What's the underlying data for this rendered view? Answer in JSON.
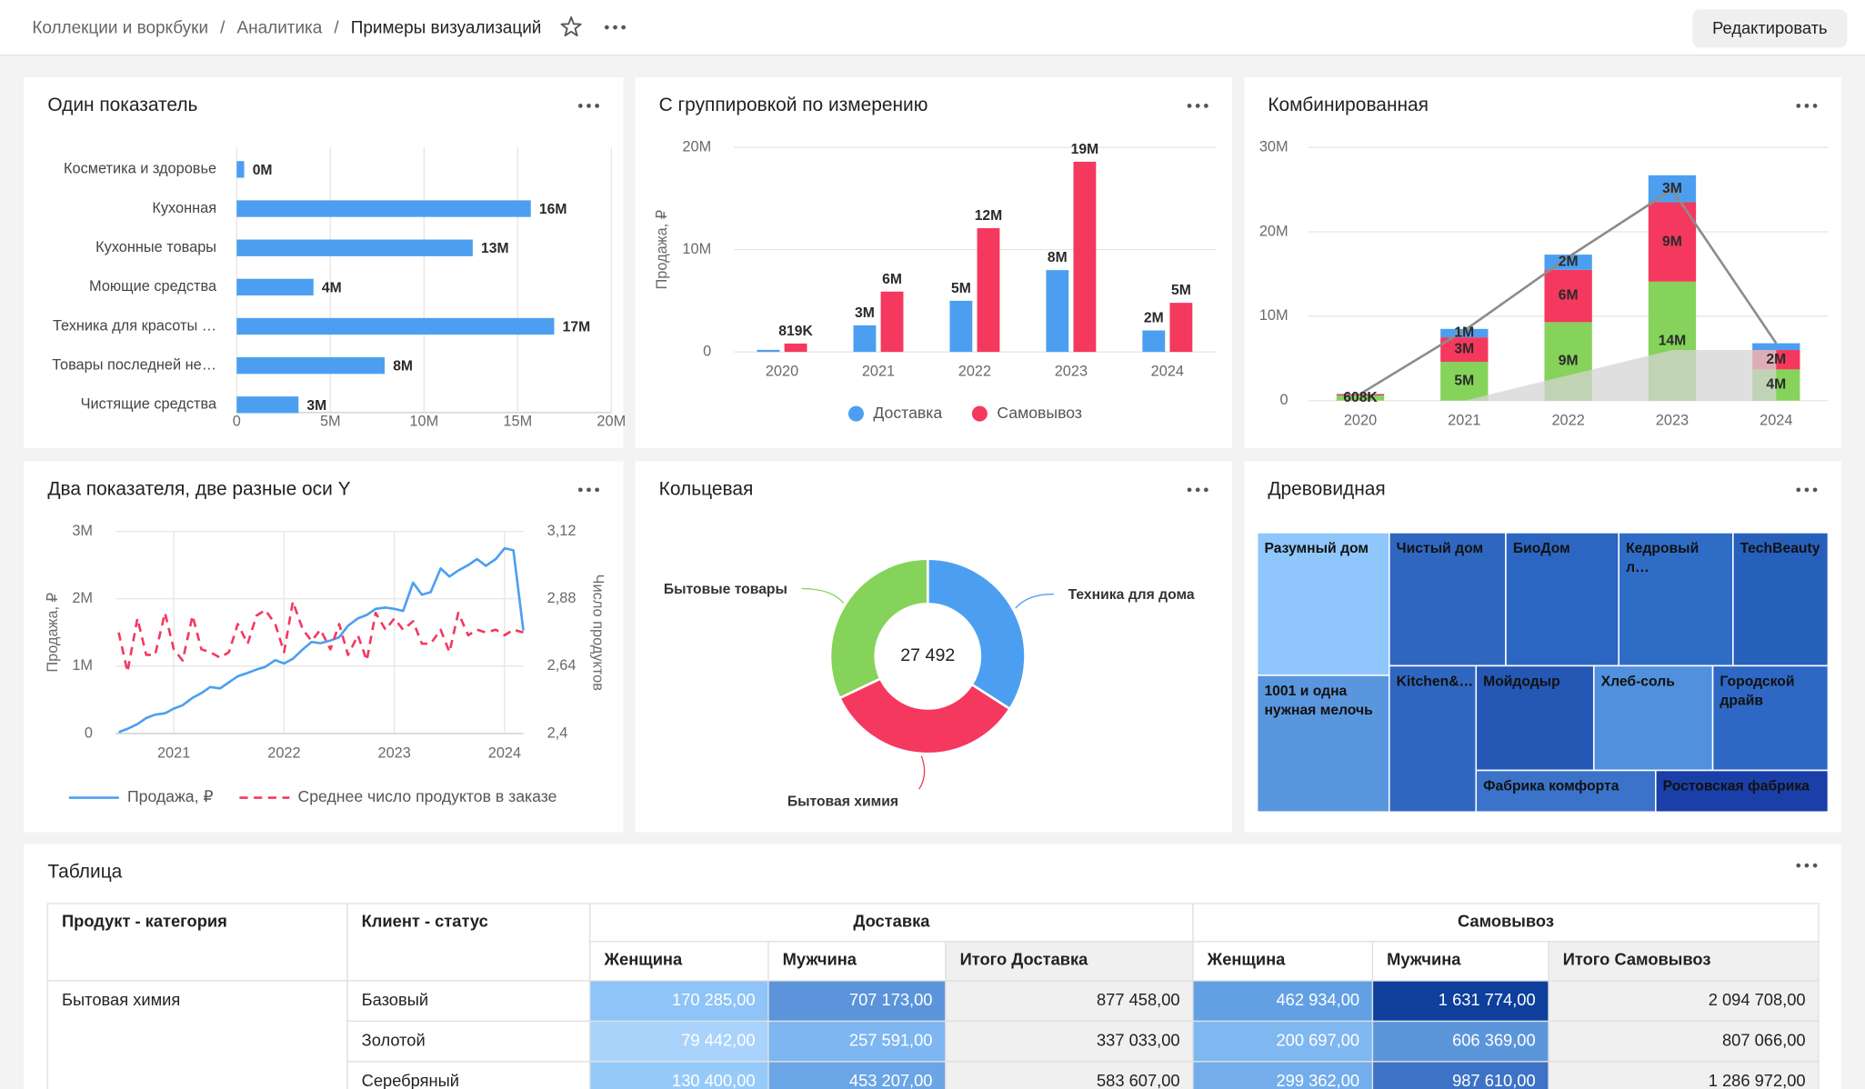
{
  "header": {
    "breadcrumbs": [
      "Коллекции и воркбуки",
      "Аналитика",
      "Примеры визуализаций"
    ],
    "separator": "/",
    "edit_button": "Редактировать"
  },
  "chart_data": [
    {
      "type": "bar",
      "orientation": "horizontal",
      "title": "Один показатель",
      "categories": [
        "Косметика и здоровье",
        "Кухонная",
        "Кухонные товары",
        "Моющие средства",
        "Техника для красоты …",
        "Товары последней не…",
        "Чистящие средства"
      ],
      "values": [
        400000,
        15700000,
        12600000,
        4100000,
        16950000,
        7900000,
        3300000
      ],
      "value_labels": [
        "0M",
        "16M",
        "13M",
        "4M",
        "17M",
        "8M",
        "3M"
      ],
      "color": "#4c9ff0",
      "xlim": [
        0,
        20000000
      ],
      "xticks": [
        0,
        {
          "value": 5000000,
          "label": "5M"
        },
        {
          "value": 10000000,
          "label": "10M"
        },
        {
          "value": 15000000,
          "label": "15M"
        },
        {
          "value": 20000000,
          "label": "20M"
        }
      ],
      "grid": true
    },
    {
      "type": "bar",
      "title": "С группировкой по измерению",
      "y_label": "Продажа, ₽",
      "categories": [
        "2020",
        "2021",
        "2022",
        "2023",
        "2024"
      ],
      "series": [
        {
          "name": "Доставка",
          "color": "#4c9ff0",
          "values": [
            200000,
            2600000,
            5000000,
            8000000,
            2100000
          ],
          "value_labels": [
            null,
            "3M",
            "5M",
            "8M",
            "2M"
          ]
        },
        {
          "name": "Самовывоз",
          "color": "#f5385e",
          "values": [
            819000,
            5900000,
            12100000,
            18600000,
            4800000
          ],
          "value_labels": [
            "819K",
            "6M",
            "12M",
            "19M",
            "5M"
          ]
        }
      ],
      "ylim": [
        0,
        20000000
      ],
      "yticks": [
        0,
        {
          "value": 10000000,
          "label": "10M"
        },
        {
          "value": 20000000,
          "label": "20M"
        }
      ],
      "grid": true,
      "legend": "bottom"
    },
    {
      "type": "combo",
      "title": "Комбинированная",
      "categories": [
        "2020",
        "2021",
        "2022",
        "2023",
        "2024"
      ],
      "series": [
        {
          "kind": "stacked_bar",
          "color": "#85d35a",
          "values": [
            608000,
            4600000,
            9300000,
            14100000,
            3700000
          ],
          "value_labels": [
            "608K",
            "5M",
            "9M",
            "14M",
            "4M"
          ]
        },
        {
          "kind": "stacked_bar",
          "color": "#f5385e",
          "values": [
            150000,
            2900000,
            6200000,
            9400000,
            2300000
          ],
          "value_labels": [
            null,
            "3M",
            "6M",
            "9M",
            "2M"
          ]
        },
        {
          "kind": "stacked_bar",
          "color": "#4c9ff0",
          "values": [
            50000,
            1000000,
            1800000,
            3200000,
            800000
          ],
          "value_labels": [
            null,
            "1M",
            "2M",
            "3M",
            null
          ]
        },
        {
          "kind": "area",
          "color": "#d4d4d4",
          "values": [
            0,
            0,
            3000000,
            6000000,
            6000000
          ]
        },
        {
          "kind": "line",
          "color": "#8c8c8c",
          "values": [
            800000,
            8300000,
            17000000,
            25000000,
            6800000
          ]
        }
      ],
      "ylim": [
        0,
        30000000
      ],
      "yticks": [
        0,
        {
          "value": 10000000,
          "label": "10M"
        },
        {
          "value": 20000000,
          "label": "20M"
        },
        {
          "value": 30000000,
          "label": "30M"
        }
      ],
      "grid": true
    },
    {
      "type": "line",
      "title": "Два показателя, две разные оси Y",
      "y_label": "Продажа, ₽",
      "y2_label": "Число продуктов",
      "x": [
        2020.5,
        2020.58,
        2020.67,
        2020.75,
        2020.83,
        2020.92,
        2021,
        2021.08,
        2021.17,
        2021.25,
        2021.33,
        2021.42,
        2021.5,
        2021.58,
        2021.67,
        2021.75,
        2021.83,
        2021.92,
        2022,
        2022.08,
        2022.17,
        2022.25,
        2022.33,
        2022.42,
        2022.5,
        2022.58,
        2022.67,
        2022.75,
        2022.83,
        2022.92,
        2023,
        2023.08,
        2023.17,
        2023.25,
        2023.33,
        2023.42,
        2023.5,
        2023.58,
        2023.67,
        2023.75,
        2023.83,
        2023.92,
        2024,
        2024.08,
        2024.17
      ],
      "series": [
        {
          "name": "Продажа, ₽",
          "color": "#4c9ff0",
          "values": [
            20000,
            70000,
            140000,
            230000,
            280000,
            300000,
            370000,
            420000,
            530000,
            600000,
            690000,
            670000,
            760000,
            850000,
            900000,
            950000,
            990000,
            1090000,
            1040000,
            1110000,
            1250000,
            1360000,
            1340000,
            1380000,
            1430000,
            1600000,
            1710000,
            1760000,
            1850000,
            1870000,
            1850000,
            1820000,
            2240000,
            2060000,
            2100000,
            2450000,
            2330000,
            2420000,
            2500000,
            2590000,
            2490000,
            2590000,
            2750000,
            2720000,
            1530000
          ]
        },
        {
          "name": "Среднее число продуктов в заказе",
          "color": "#f5385e",
          "axis": "y2",
          "dashed": true,
          "values": [
            2.76,
            2.62,
            2.81,
            2.68,
            2.68,
            2.83,
            2.7,
            2.66,
            2.82,
            2.7,
            2.69,
            2.67,
            2.69,
            2.79,
            2.72,
            2.82,
            2.84,
            2.79,
            2.69,
            2.87,
            2.77,
            2.73,
            2.77,
            2.7,
            2.79,
            2.68,
            2.75,
            2.66,
            2.83,
            2.77,
            2.81,
            2.77,
            2.8,
            2.72,
            2.72,
            2.77,
            2.69,
            2.83,
            2.75,
            2.77,
            2.76,
            2.77,
            2.75,
            2.77,
            2.76
          ]
        }
      ],
      "xlim": [
        2020.47,
        2024.17
      ],
      "xticks": [
        2021,
        2022,
        2023,
        2024
      ],
      "ylim": [
        0,
        3000000
      ],
      "yticks": [
        0,
        {
          "value": 1000000,
          "label": "1M"
        },
        {
          "value": 2000000,
          "label": "2M"
        },
        {
          "value": 3000000,
          "label": "3M"
        }
      ],
      "y2lim": [
        2.4,
        3.12
      ],
      "y2ticks": [
        {
          "value": 2.4,
          "label": "2,4"
        },
        {
          "value": 2.64,
          "label": "2,64"
        },
        {
          "value": 2.88,
          "label": "2,88"
        },
        {
          "value": 3.12,
          "label": "3,12"
        }
      ],
      "grid": true,
      "legend": "bottom"
    },
    {
      "type": "donut",
      "title": "Кольцевая",
      "center_label": "27 492",
      "categories": [
        "Техника для дома",
        "Бытовая химия",
        "Бытовые товары"
      ],
      "values": [
        9370,
        9310,
        8812
      ],
      "colors": [
        "#4c9ff0",
        "#f5385e",
        "#85d35a"
      ]
    },
    {
      "type": "treemap",
      "title": "Древовидная",
      "categories": [
        "Разумный дом",
        "1001 и одна нужная мелочь",
        "Чистый дом",
        "БиоДом",
        "Кедровый л…",
        "TechBeauty",
        "Kitchen&…",
        "Мойдодыр",
        "Хлеб-соль",
        "Городской драйв",
        "Фабрика комфорта",
        "Ростовская фабрика"
      ],
      "values": [
        13320,
        12765,
        10976,
        10640,
        10752,
        8960,
        8979,
        8712,
        8800,
        8536,
        5285,
        5075
      ],
      "colors": [
        "#8fc6fb",
        "#5a96dd",
        "#2f67c0",
        "#2c66c2",
        "#2f6cc6",
        "#2660bb",
        "#2f67c0",
        "#2558b5",
        "#5190dd",
        "#2e68c4",
        "#3a73c9",
        "#1a3fa8"
      ]
    }
  ],
  "table": {
    "title": "Таблица",
    "row_headers": [
      "Продукт - категория",
      "Клиент - статус"
    ],
    "group_headers": [
      "Доставка",
      "Самовывоз"
    ],
    "sub_headers": [
      "Женщина",
      "Мужчина",
      "Итого Доставка",
      "Женщина",
      "Мужчина",
      "Итого Самовывоз"
    ],
    "rows": [
      [
        "Бытовая химия",
        "Базовый",
        "170 285,00",
        "707 173,00",
        "877 458,00",
        "462 934,00",
        "1 631 774,00",
        "2 094 708,00"
      ],
      [
        null,
        "Золотой",
        "79 442,00",
        "257 591,00",
        "337 033,00",
        "200 697,00",
        "606 369,00",
        "807 066,00"
      ],
      [
        null,
        "Серебряный",
        "130 400,00",
        "453 207,00",
        "583 607,00",
        "299 362,00",
        "987 610,00",
        "1 286 972,00"
      ]
    ],
    "cell_colors": [
      [
        "#8ec4f8",
        "#5b94da",
        "#f0f0f0",
        "#62a0e3",
        "#0e3f9c",
        "#f0f0f0"
      ],
      [
        "#a9d3fb",
        "#7db6f1",
        "#f0f0f0",
        "#7fb7f1",
        "#5b96db",
        "#f0f0f0"
      ],
      [
        "#96caf9",
        "#6aa5e6",
        "#f0f0f0",
        "#73adec",
        "#3d72c6",
        "#f0f0f0"
      ]
    ]
  }
}
